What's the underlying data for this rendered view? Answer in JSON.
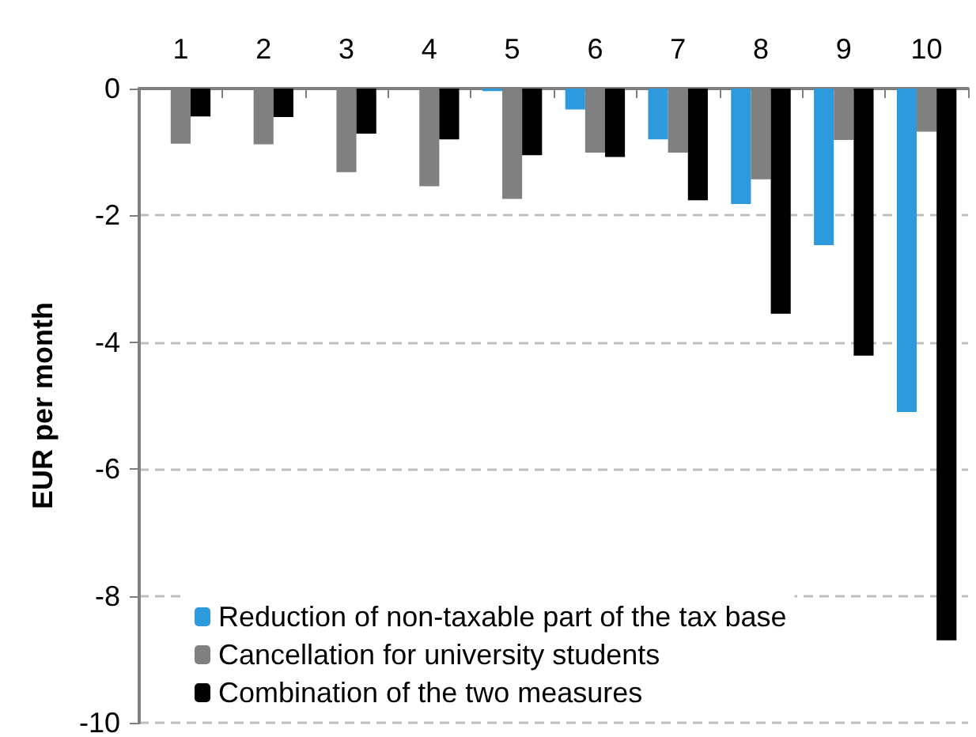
{
  "chart_data": {
    "type": "bar",
    "ylabel": "EUR per month",
    "categories": [
      "1",
      "2",
      "3",
      "4",
      "5",
      "6",
      "7",
      "8",
      "9",
      "10"
    ],
    "series": [
      {
        "name": "Reduction of non-taxable part of the tax base",
        "color": "#2e9ade",
        "values": [
          0,
          0,
          0,
          0,
          -0.04,
          -0.33,
          -0.8,
          -1.82,
          -2.47,
          -5.1
        ]
      },
      {
        "name": "Cancellation for university students",
        "color": "#808080",
        "values": [
          -0.87,
          -0.88,
          -1.32,
          -1.54,
          -1.74,
          -1.01,
          -1.01,
          -1.43,
          -0.81,
          -0.68
        ]
      },
      {
        "name": "Combination of the two measures",
        "color": "#000000",
        "values": [
          -0.44,
          -0.45,
          -0.71,
          -0.8,
          -1.05,
          -1.08,
          -1.76,
          -3.55,
          -4.21,
          -8.7
        ]
      }
    ],
    "ylim": [
      -10,
      0
    ],
    "yticks": [
      -10,
      -8,
      -6,
      -4,
      -2,
      0
    ],
    "grid": "y",
    "legend": "bottom left"
  }
}
